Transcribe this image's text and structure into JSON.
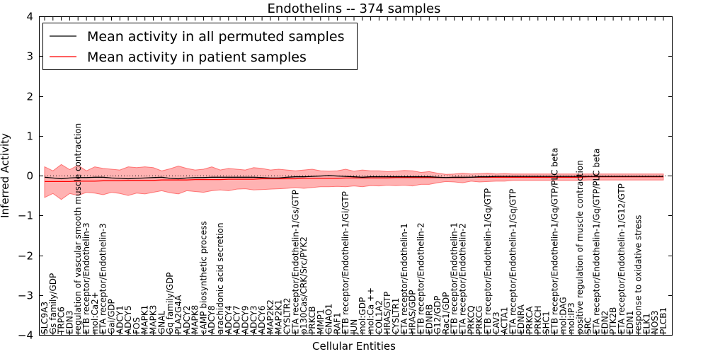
{
  "chart_data": {
    "type": "line",
    "title": "Endothelins -- 374 samples",
    "xlabel": "Cellular Entities",
    "ylabel": "Inferred Activity",
    "ylim": [
      -4,
      4
    ],
    "yticks": [
      -4,
      -3,
      -2,
      -1,
      0,
      1,
      2,
      3,
      4
    ],
    "legend_position": "top-left",
    "colors": {
      "permuted": "#000000",
      "patient": "#ff0000",
      "band_fill": "#ff7f7f",
      "band_edge": "#ff3333",
      "zero_line": "#000000"
    },
    "categories": [
      "SLC9A3",
      "Gs family/GDP",
      "TRPC6",
      "EDN3",
      "regulation of vascular smooth muscle contraction",
      "ETB receptor/Endothelin-3",
      "mol:Ca2+",
      "ETA receptor/Endothelin-3",
      "Gai/GDP",
      "ADCY1",
      "ADCY5",
      "FOS",
      "MAPK1",
      "MAPK3",
      "GNAL",
      "Gq family/GDP",
      "PLA2G4A",
      "ADCY2",
      "MAPK8",
      "cAMP biosynthetic process",
      "ADCY8",
      "arachidonic acid secretion",
      "ADCY4",
      "ADCY7",
      "ADCY9",
      "ADCY3",
      "ADCY6",
      "MAP2K2",
      "MAP2K1",
      "CYSLTR2",
      "ETA receptor/Endothelin-1/Gs/GTP",
      "p130Cas/CRK/Src/PYK2",
      "PRKCB",
      "MMP1",
      "GNAO1",
      "RAF1",
      "ETB receptor/Endothelin-1/Gi/GTP",
      "JUN",
      "mol:GDP",
      "mol:Ca ++",
      "COL1A2",
      "HRAS/GTP",
      "CYSLTR1",
      "ETA receptor/Endothelin-1",
      "HRAS/GDP",
      "ETB receptor/Endothelin-2",
      "EDNRB",
      "G12/GDP",
      "Rac1/GDP",
      "ETB receptor/Endothelin-1",
      "ETA receptor/Endothelin-2",
      "PRKCQ",
      "PRKCG",
      "ETB receptor/Endothelin-1/Gq/GTP",
      "CAV3",
      "ACTA1",
      "ETA receptor/Endothelin-1/Gq/GTP",
      "EDNRA",
      "PRKCA",
      "PRKCH",
      "SHC1",
      "ETB receptor/Endothelin-1/Gq/GTP/PLC beta",
      "mol:DAG",
      "mol:IP3",
      "positive regulation of muscle contraction",
      "SRC",
      "ETA receptor/Endothelin-1/Gq/GTP/PLC beta",
      "EDN2",
      "PTK2B",
      "ETA receptor/Endothelin-1/G12/GTP",
      "EDN1",
      "response to oxidative stress",
      "ELK1",
      "NOS3",
      "PLCB1"
    ],
    "series": [
      {
        "name": "Mean activity in all permuted samples",
        "color": "#000000",
        "values": [
          -0.04,
          -0.06,
          -0.08,
          -0.06,
          -0.05,
          -0.05,
          -0.04,
          -0.04,
          -0.06,
          -0.07,
          -0.08,
          -0.07,
          -0.06,
          -0.05,
          -0.04,
          -0.07,
          -0.08,
          -0.06,
          -0.05,
          -0.05,
          -0.04,
          -0.04,
          -0.04,
          -0.04,
          -0.04,
          -0.04,
          -0.05,
          -0.06,
          -0.06,
          -0.04,
          -0.03,
          -0.03,
          -0.02,
          -0.01,
          0.0,
          -0.01,
          -0.02,
          -0.03,
          -0.04,
          -0.03,
          -0.03,
          -0.03,
          -0.03,
          -0.03,
          -0.03,
          -0.03,
          -0.03,
          -0.04,
          -0.05,
          -0.04,
          -0.04,
          -0.04,
          -0.03,
          -0.03,
          -0.02,
          -0.02,
          -0.02,
          -0.02,
          -0.02,
          -0.02,
          -0.02,
          -0.02,
          -0.02,
          -0.02,
          -0.02,
          -0.02,
          -0.02,
          -0.02,
          -0.02,
          -0.02,
          -0.02,
          -0.02,
          -0.02,
          -0.02,
          -0.02
        ]
      },
      {
        "name": "Mean activity in patient samples",
        "color": "#ff0000",
        "values": [
          -0.15,
          -0.15,
          -0.15,
          -0.15,
          -0.14,
          -0.14,
          -0.14,
          -0.13,
          -0.13,
          -0.13,
          -0.12,
          -0.12,
          -0.12,
          -0.12,
          -0.11,
          -0.11,
          -0.11,
          -0.11,
          -0.1,
          -0.1,
          -0.1,
          -0.1,
          -0.09,
          -0.09,
          -0.09,
          -0.09,
          -0.08,
          -0.08,
          -0.08,
          -0.08,
          -0.08,
          -0.07,
          -0.07,
          -0.07,
          -0.07,
          -0.07,
          -0.06,
          -0.06,
          -0.06,
          -0.06,
          -0.06,
          -0.06,
          -0.05,
          -0.05,
          -0.05,
          -0.05,
          -0.05,
          -0.05,
          -0.05,
          -0.05,
          -0.05,
          -0.04,
          -0.04,
          -0.04,
          -0.04,
          -0.04,
          -0.04,
          -0.04,
          -0.04,
          -0.04,
          -0.04,
          -0.04,
          -0.04,
          -0.04,
          -0.04,
          -0.03,
          -0.03,
          -0.03,
          -0.03,
          -0.03,
          -0.03,
          -0.03,
          -0.03,
          -0.03,
          -0.03
        ],
        "band_upper": [
          0.22,
          0.12,
          0.28,
          0.15,
          0.26,
          0.12,
          0.22,
          0.18,
          0.16,
          0.14,
          0.22,
          0.2,
          0.22,
          0.2,
          0.12,
          0.17,
          0.24,
          0.18,
          0.14,
          0.16,
          0.22,
          0.14,
          0.18,
          0.16,
          0.14,
          0.2,
          0.18,
          0.14,
          0.16,
          0.14,
          0.12,
          0.14,
          0.16,
          0.12,
          0.11,
          0.12,
          0.16,
          0.11,
          0.14,
          0.12,
          0.12,
          0.1,
          0.11,
          0.13,
          0.12,
          0.08,
          0.1,
          0.06,
          0.03,
          0.04,
          0.06,
          0.04,
          0.05,
          0.06,
          0.04,
          0.05,
          0.04,
          0.04,
          0.04,
          0.04,
          0.04,
          0.04,
          0.04,
          0.04,
          0.04,
          0.04,
          0.04,
          0.04,
          0.04,
          0.04,
          0.04,
          0.04,
          0.04,
          0.04,
          0.04
        ],
        "band_lower": [
          -0.55,
          -0.45,
          -0.6,
          -0.45,
          -0.5,
          -0.42,
          -0.44,
          -0.48,
          -0.42,
          -0.45,
          -0.5,
          -0.44,
          -0.46,
          -0.42,
          -0.38,
          -0.43,
          -0.46,
          -0.38,
          -0.4,
          -0.42,
          -0.38,
          -0.36,
          -0.38,
          -0.34,
          -0.33,
          -0.36,
          -0.35,
          -0.34,
          -0.33,
          -0.32,
          -0.3,
          -0.32,
          -0.3,
          -0.28,
          -0.28,
          -0.27,
          -0.28,
          -0.26,
          -0.28,
          -0.25,
          -0.26,
          -0.24,
          -0.25,
          -0.24,
          -0.26,
          -0.22,
          -0.22,
          -0.18,
          -0.15,
          -0.16,
          -0.18,
          -0.14,
          -0.16,
          -0.15,
          -0.14,
          -0.14,
          -0.12,
          -0.12,
          -0.12,
          -0.12,
          -0.12,
          -0.12,
          -0.12,
          -0.12,
          -0.12,
          -0.11,
          -0.11,
          -0.11,
          -0.11,
          -0.11,
          -0.11,
          -0.11,
          -0.11,
          -0.11,
          -0.11
        ]
      }
    ]
  }
}
